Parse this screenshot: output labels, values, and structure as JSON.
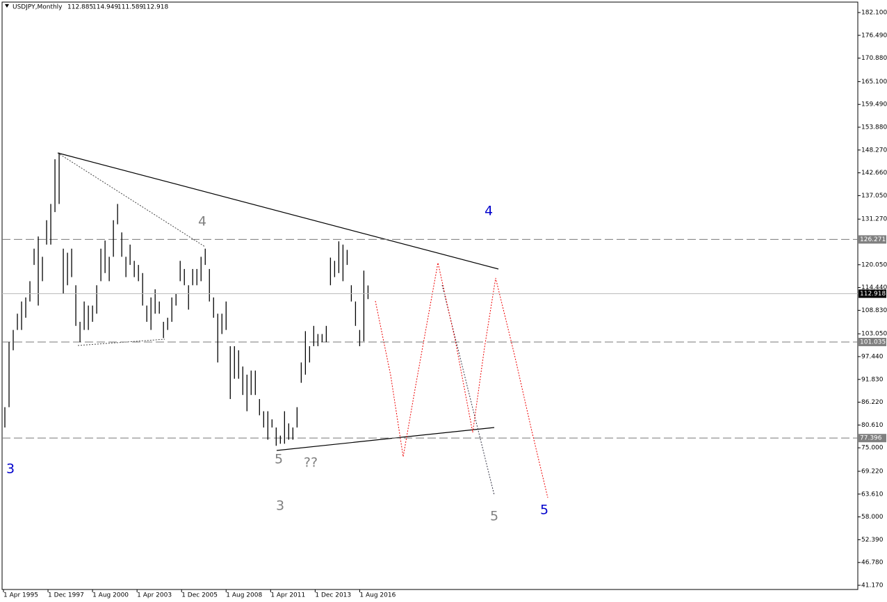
{
  "chart_data": {
    "type": "ohlc",
    "title": "USDJPY,Monthly",
    "last_bar": {
      "open": 112.885,
      "high": 114.949,
      "low": 111.589,
      "close": 112.918
    },
    "color": "#000000",
    "x": [
      "1995-05",
      "1995-08",
      "1995-11",
      "1996-02",
      "1996-05",
      "1996-08",
      "1996-11",
      "1997-02",
      "1997-05",
      "1997-08",
      "1997-11",
      "1998-02",
      "1998-05",
      "1998-08",
      "1998-11",
      "1999-02",
      "1999-05",
      "1999-08",
      "1999-11",
      "2000-02",
      "2000-05",
      "2000-08",
      "2000-11",
      "2001-02",
      "2001-05",
      "2001-08",
      "2001-11",
      "2002-02",
      "2002-05",
      "2002-08",
      "2002-11",
      "2003-02",
      "2003-05",
      "2003-08",
      "2003-11",
      "2004-02",
      "2004-05",
      "2004-08",
      "2004-11",
      "2005-02",
      "2005-05",
      "2005-08",
      "2005-11",
      "2006-02",
      "2006-05",
      "2006-08",
      "2006-11",
      "2007-02",
      "2007-05",
      "2007-08",
      "2007-11",
      "2008-02",
      "2008-05",
      "2008-08",
      "2008-11",
      "2009-02",
      "2009-05",
      "2009-08",
      "2009-11",
      "2010-02",
      "2010-05",
      "2010-08",
      "2010-11",
      "2011-02",
      "2011-05",
      "2011-08",
      "2011-11",
      "2012-02",
      "2012-05",
      "2012-08",
      "2012-11",
      "2013-02",
      "2013-05",
      "2013-08",
      "2013-11",
      "2014-02",
      "2014-05",
      "2014-08",
      "2014-11",
      "2015-02",
      "2015-05",
      "2015-08",
      "2015-11",
      "2016-02",
      "2016-05",
      "2016-08",
      "2016-11",
      "2017-02"
    ],
    "high": [
      85,
      101,
      104,
      108,
      111,
      112,
      116,
      124,
      127,
      122,
      131,
      135,
      146,
      147.6,
      124,
      123,
      124,
      115,
      106,
      111,
      110,
      110,
      115,
      124,
      126,
      122,
      131,
      135,
      128,
      122,
      125,
      121,
      120,
      118,
      110,
      112,
      114,
      111,
      106,
      107,
      112,
      113,
      121,
      119,
      115,
      119,
      119,
      122,
      124,
      119,
      112,
      108,
      108,
      111,
      100,
      100,
      99,
      95,
      93,
      94,
      94,
      87,
      84,
      84,
      82,
      80,
      78,
      84,
      81,
      80,
      85,
      96,
      103.7,
      100,
      105,
      103,
      103,
      105,
      121.8,
      121,
      125.8,
      125,
      123.7,
      115,
      111,
      104,
      118.6,
      114.949
    ],
    "low": [
      80,
      85,
      99,
      104,
      104,
      107,
      111,
      120,
      110,
      116,
      125,
      125,
      133,
      135,
      113,
      115,
      117,
      105,
      101,
      104,
      104,
      106,
      108,
      116,
      118,
      116,
      122,
      130,
      122,
      117,
      120,
      117,
      116,
      110,
      106,
      104,
      108,
      108,
      102,
      104,
      106,
      110,
      116,
      115,
      109,
      115,
      115,
      116,
      120,
      111,
      107,
      96,
      103,
      104,
      87,
      92,
      92,
      88,
      84,
      88,
      88,
      83,
      80,
      77,
      80,
      75.5,
      76,
      76,
      77,
      77,
      80,
      91,
      93,
      96,
      100,
      100,
      101,
      101,
      115,
      117,
      118,
      116,
      120,
      111,
      105,
      100,
      101.2,
      111.589
    ],
    "xlim": [
      "1995-03",
      "2046-06"
    ],
    "xticks": [
      {
        "value": "1995-04",
        "label": "1 Apr 1995"
      },
      {
        "value": "1997-12",
        "label": "1 Dec 1997"
      },
      {
        "value": "2000-08",
        "label": "1 Aug 2000"
      },
      {
        "value": "2003-04",
        "label": "1 Apr 2003"
      },
      {
        "value": "2005-12",
        "label": "1 Dec 2005"
      },
      {
        "value": "2008-08",
        "label": "1 Aug 2008"
      },
      {
        "value": "2011-04",
        "label": "1 Apr 2011"
      },
      {
        "value": "2013-12",
        "label": "1 Dec 2013"
      },
      {
        "value": "2016-08",
        "label": "1 Aug 2016"
      }
    ],
    "ylim": [
      40.14,
      184.67
    ],
    "yticks": [
      {
        "value": 182.1,
        "label": "182.100"
      },
      {
        "value": 176.49,
        "label": "176.490"
      },
      {
        "value": 170.88,
        "label": "170.880"
      },
      {
        "value": 165.1,
        "label": "165.100"
      },
      {
        "value": 159.49,
        "label": "159.490"
      },
      {
        "value": 153.88,
        "label": "153.880"
      },
      {
        "value": 148.27,
        "label": "148.270"
      },
      {
        "value": 142.66,
        "label": "142.660"
      },
      {
        "value": 137.05,
        "label": "137.050"
      },
      {
        "value": 131.27,
        "label": "131.270"
      },
      {
        "value": 120.05,
        "label": "120.050"
      },
      {
        "value": 114.44,
        "label": "114.440"
      },
      {
        "value": 108.83,
        "label": "108.830"
      },
      {
        "value": 103.05,
        "label": "103.050"
      },
      {
        "value": 97.44,
        "label": "97.440"
      },
      {
        "value": 91.83,
        "label": "91.830"
      },
      {
        "value": 86.22,
        "label": "86.220"
      },
      {
        "value": 80.61,
        "label": "80.610"
      },
      {
        "value": 75,
        "label": "75.000"
      },
      {
        "value": 69.22,
        "label": "69.220"
      },
      {
        "value": 63.61,
        "label": "63.610"
      },
      {
        "value": 58,
        "label": "58.000"
      },
      {
        "value": 52.39,
        "label": "52.390"
      },
      {
        "value": 46.78,
        "label": "46.780"
      },
      {
        "value": 41.17,
        "label": "41.170"
      }
    ],
    "levels": [
      126.271,
      101.035,
      77.396
    ],
    "annotations": [
      {
        "text": "3",
        "color": "#0000cc"
      },
      {
        "text": "4",
        "color": "#808080"
      },
      {
        "text": "4",
        "color": "#0000cc"
      },
      {
        "text": "5",
        "color": "#808080"
      },
      {
        "text": "??",
        "color": "#808080"
      },
      {
        "text": "3",
        "color": "#808080"
      },
      {
        "text": "5",
        "color": "#808080"
      },
      {
        "text": "5",
        "color": "#0000cc"
      }
    ]
  }
}
